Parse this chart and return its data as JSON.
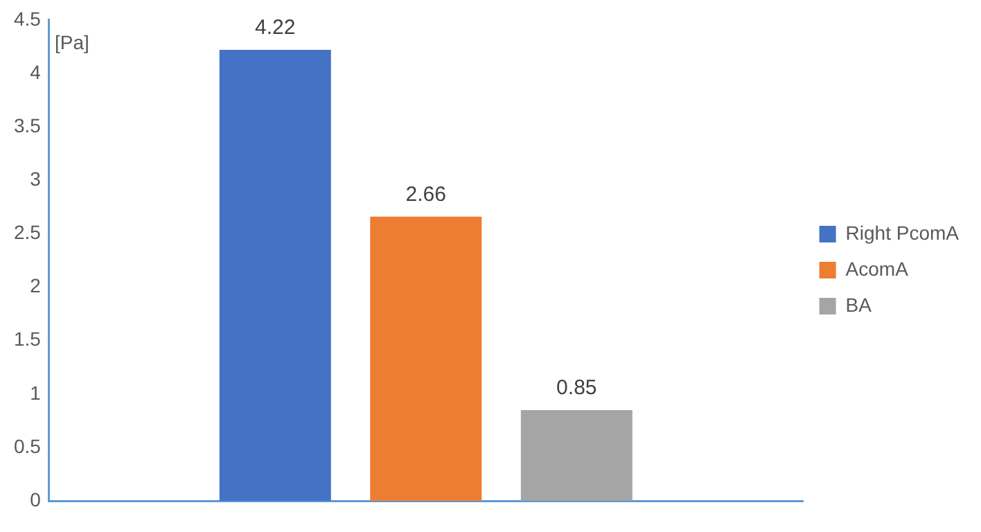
{
  "chart_data": {
    "type": "bar",
    "ylabel": "[Pa]",
    "categories": [
      null
    ],
    "series": [
      {
        "name": "Right PcomA",
        "color": "#4472c4",
        "values": [
          4.22
        ]
      },
      {
        "name": "AcomA",
        "color": "#ed7d31",
        "values": [
          2.66
        ]
      },
      {
        "name": "BA",
        "color": "#a5a5a5",
        "values": [
          0.85
        ]
      }
    ],
    "ylim": [
      0,
      4.5
    ],
    "yticks": [
      0,
      0.5,
      1,
      1.5,
      2,
      2.5,
      3,
      3.5,
      4,
      4.5
    ],
    "grid": false,
    "legend": "right",
    "data_labels": true
  }
}
